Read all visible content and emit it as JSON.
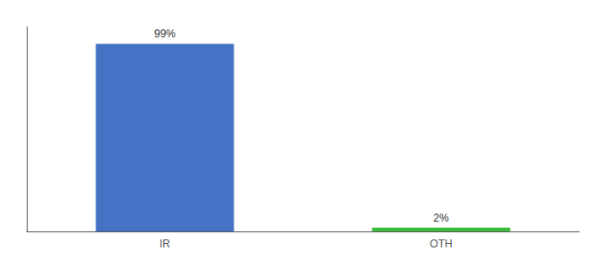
{
  "chart_data": {
    "type": "bar",
    "categories": [
      "IR",
      "OTH"
    ],
    "values": [
      99,
      2
    ],
    "value_labels": [
      "99%",
      "2%"
    ],
    "colors": [
      "#4472c4",
      "#3dbb3d"
    ],
    "ylim": [
      0,
      108
    ],
    "grid": false,
    "tick_labels": "x"
  }
}
